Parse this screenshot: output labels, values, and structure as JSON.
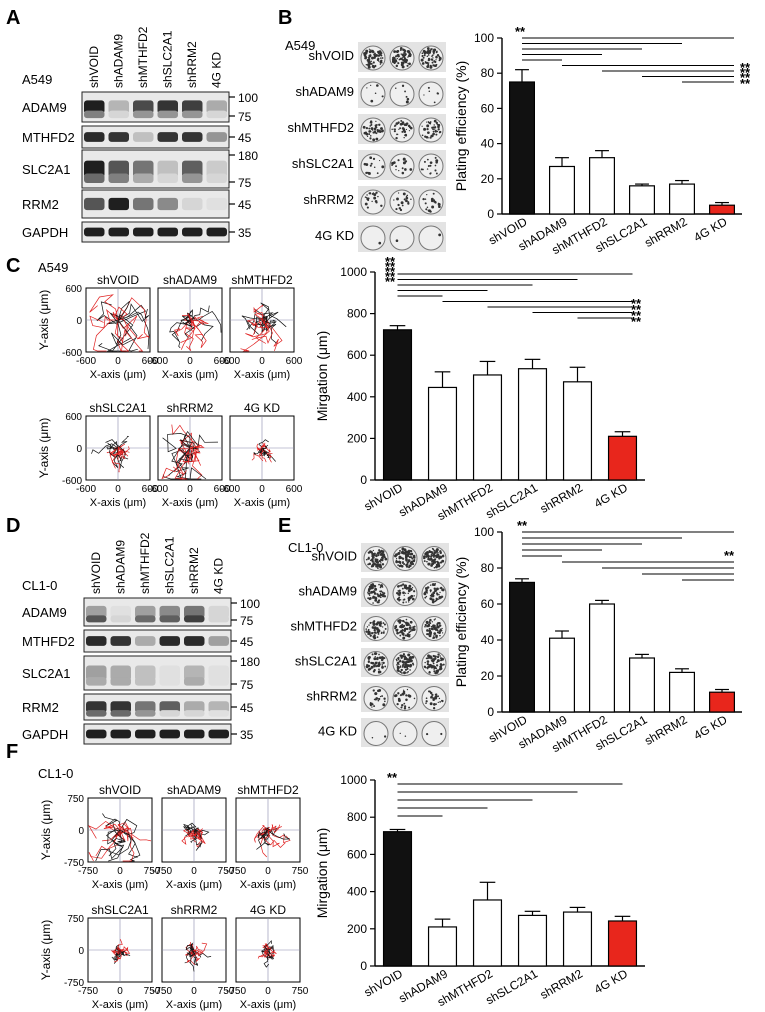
{
  "panels": [
    "A",
    "B",
    "C",
    "D",
    "E",
    "F"
  ],
  "conditions": [
    "shVOID",
    "shADAM9",
    "shMTHFD2",
    "shSLC2A1",
    "shRRM2",
    "4G KD"
  ],
  "western": [
    {
      "cell_line": "A549",
      "rows": [
        {
          "label": "ADAM9",
          "markers": [
            "100",
            "75"
          ]
        },
        {
          "label": "MTHFD2",
          "markers": [
            "45"
          ]
        },
        {
          "label": "SLC2A1",
          "markers": [
            "180",
            "75"
          ]
        },
        {
          "label": "RRM2",
          "markers": [
            "45"
          ]
        },
        {
          "label": "GAPDH",
          "markers": [
            "35"
          ]
        }
      ]
    },
    {
      "cell_line": "CL1-0",
      "rows": [
        {
          "label": "ADAM9",
          "markers": [
            "100",
            "75"
          ]
        },
        {
          "label": "MTHFD2",
          "markers": [
            "45"
          ]
        },
        {
          "label": "SLC2A1",
          "markers": [
            "180",
            "75"
          ]
        },
        {
          "label": "RRM2",
          "markers": [
            "45"
          ]
        },
        {
          "label": "GAPDH",
          "markers": [
            "35"
          ]
        }
      ]
    }
  ],
  "colony": [
    {
      "cell_line": "A549"
    },
    {
      "cell_line": "CL1-0"
    }
  ],
  "track_panels": [
    {
      "cell_line": "A549",
      "xlabel": "X-axis (μm)",
      "ylabel": "Y-axis (μm)",
      "ticks": [
        "-600",
        "0",
        "600"
      ]
    },
    {
      "cell_line": "CL1-0",
      "xlabel": "X-axis (μm)",
      "ylabel": "Y-axis (μm)",
      "ticks": [
        "-750",
        "0",
        "750"
      ]
    }
  ],
  "chart_data": [
    {
      "type": "bar",
      "panel": "B",
      "categories": [
        "shVOID",
        "shADAM9",
        "shMTHFD2",
        "shSLC2A1",
        "shRRM2",
        "4G KD"
      ],
      "values": [
        75,
        27,
        32,
        16,
        17,
        5
      ],
      "errors": [
        7,
        5,
        4,
        1,
        2,
        1.5
      ],
      "ylabel": "Plating efficiency (%)",
      "ylim": [
        0,
        100
      ],
      "yticks": [
        0,
        20,
        40,
        60,
        80,
        100
      ],
      "colors": [
        "#111111",
        "#ffffff",
        "#ffffff",
        "#ffffff",
        "#ffffff",
        "#e8261c"
      ],
      "significance": "**"
    },
    {
      "type": "bar",
      "panel": "C",
      "categories": [
        "shVOID",
        "shADAM9",
        "shMTHFD2",
        "shSLC2A1",
        "shRRM2",
        "4G KD"
      ],
      "values": [
        722,
        445,
        505,
        535,
        472,
        210
      ],
      "errors": [
        20,
        75,
        65,
        45,
        70,
        22
      ],
      "ylabel": "Mirgation (μm)",
      "ylim": [
        0,
        1000
      ],
      "yticks": [
        0,
        200,
        400,
        600,
        800,
        1000
      ],
      "colors": [
        "#111111",
        "#ffffff",
        "#ffffff",
        "#ffffff",
        "#ffffff",
        "#e8261c"
      ],
      "significance": "**"
    },
    {
      "type": "bar",
      "panel": "E",
      "categories": [
        "shVOID",
        "shADAM9",
        "shMTHFD2",
        "shSLC2A1",
        "shRRM2",
        "4G KD"
      ],
      "values": [
        72,
        41,
        60,
        30,
        22,
        11
      ],
      "errors": [
        2,
        4,
        2,
        2,
        2,
        1.5
      ],
      "ylabel": "Plating efficiency (%)",
      "ylim": [
        0,
        100
      ],
      "yticks": [
        0,
        20,
        40,
        60,
        80,
        100
      ],
      "colors": [
        "#111111",
        "#ffffff",
        "#ffffff",
        "#ffffff",
        "#ffffff",
        "#e8261c"
      ],
      "significance": "**"
    },
    {
      "type": "bar",
      "panel": "F",
      "categories": [
        "shVOID",
        "shADAM9",
        "shMTHFD2",
        "shSLC2A1",
        "shRRM2",
        "4G KD"
      ],
      "values": [
        722,
        210,
        355,
        272,
        290,
        242
      ],
      "errors": [
        12,
        42,
        95,
        22,
        25,
        25
      ],
      "ylabel": "Mirgation (μm)",
      "ylim": [
        0,
        1000
      ],
      "yticks": [
        0,
        200,
        400,
        600,
        800,
        1000
      ],
      "colors": [
        "#111111",
        "#ffffff",
        "#ffffff",
        "#ffffff",
        "#ffffff",
        "#e8261c"
      ],
      "significance": "**"
    }
  ]
}
